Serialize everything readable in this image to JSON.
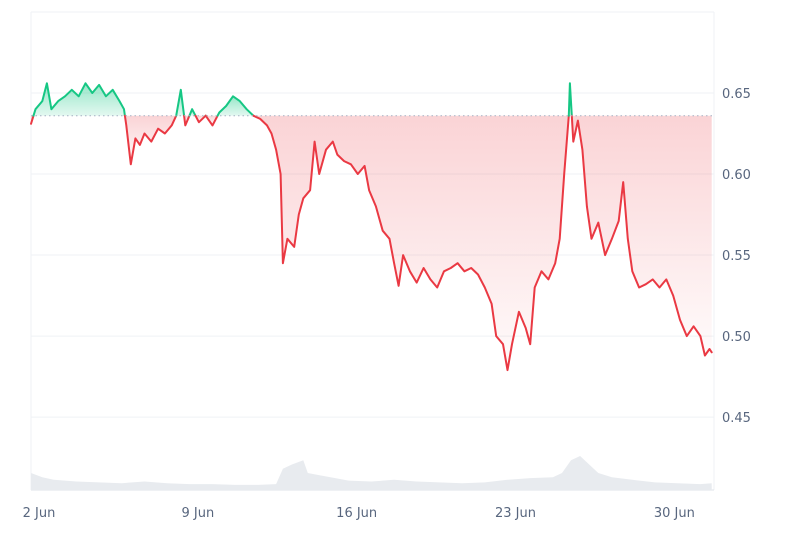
{
  "chart_data": {
    "type": "line",
    "baseline": 0.636,
    "ylim": [
      0.405,
      0.7
    ],
    "y_ticks": [
      {
        "value": 0.65,
        "label": "0.65"
      },
      {
        "value": 0.6,
        "label": "0.60"
      },
      {
        "value": 0.55,
        "label": "0.55"
      },
      {
        "value": 0.5,
        "label": "0.50"
      },
      {
        "value": 0.45,
        "label": "0.45"
      }
    ],
    "x_ticks": [
      {
        "day": 2,
        "label": "2 Jun"
      },
      {
        "day": 9,
        "label": "9 Jun"
      },
      {
        "day": 16,
        "label": "16 Jun"
      },
      {
        "day": 23,
        "label": "23 Jun"
      },
      {
        "day": 30,
        "label": "30 Jun"
      }
    ],
    "xlim": [
      2,
      32.1
    ],
    "colors": {
      "above": "#16c784",
      "below": "#ea3943",
      "volume": "#e8ebef",
      "grid": "#eff2f5",
      "baseline": "#a6b0c3"
    },
    "price": [
      [
        2.0,
        0.631
      ],
      [
        2.2,
        0.64
      ],
      [
        2.5,
        0.645
      ],
      [
        2.7,
        0.656
      ],
      [
        2.9,
        0.64
      ],
      [
        3.2,
        0.645
      ],
      [
        3.5,
        0.648
      ],
      [
        3.8,
        0.652
      ],
      [
        4.1,
        0.648
      ],
      [
        4.4,
        0.656
      ],
      [
        4.7,
        0.65
      ],
      [
        5.0,
        0.655
      ],
      [
        5.3,
        0.648
      ],
      [
        5.6,
        0.652
      ],
      [
        5.9,
        0.645
      ],
      [
        6.1,
        0.64
      ],
      [
        6.2,
        0.63
      ],
      [
        6.4,
        0.606
      ],
      [
        6.6,
        0.622
      ],
      [
        6.8,
        0.618
      ],
      [
        7.0,
        0.625
      ],
      [
        7.3,
        0.62
      ],
      [
        7.6,
        0.628
      ],
      [
        7.9,
        0.625
      ],
      [
        8.2,
        0.63
      ],
      [
        8.4,
        0.636
      ],
      [
        8.6,
        0.652
      ],
      [
        8.8,
        0.63
      ],
      [
        9.1,
        0.64
      ],
      [
        9.4,
        0.632
      ],
      [
        9.7,
        0.636
      ],
      [
        10.0,
        0.63
      ],
      [
        10.3,
        0.638
      ],
      [
        10.6,
        0.642
      ],
      [
        10.9,
        0.648
      ],
      [
        11.2,
        0.645
      ],
      [
        11.5,
        0.64
      ],
      [
        11.8,
        0.636
      ],
      [
        12.1,
        0.634
      ],
      [
        12.4,
        0.63
      ],
      [
        12.6,
        0.625
      ],
      [
        12.8,
        0.615
      ],
      [
        13.0,
        0.6
      ],
      [
        13.1,
        0.545
      ],
      [
        13.3,
        0.56
      ],
      [
        13.6,
        0.555
      ],
      [
        13.8,
        0.575
      ],
      [
        14.0,
        0.585
      ],
      [
        14.3,
        0.59
      ],
      [
        14.5,
        0.62
      ],
      [
        14.7,
        0.6
      ],
      [
        15.0,
        0.615
      ],
      [
        15.3,
        0.62
      ],
      [
        15.5,
        0.612
      ],
      [
        15.8,
        0.608
      ],
      [
        16.1,
        0.606
      ],
      [
        16.4,
        0.6
      ],
      [
        16.7,
        0.605
      ],
      [
        16.9,
        0.59
      ],
      [
        17.2,
        0.58
      ],
      [
        17.5,
        0.565
      ],
      [
        17.8,
        0.56
      ],
      [
        18.0,
        0.545
      ],
      [
        18.2,
        0.531
      ],
      [
        18.4,
        0.55
      ],
      [
        18.7,
        0.54
      ],
      [
        19.0,
        0.533
      ],
      [
        19.3,
        0.542
      ],
      [
        19.6,
        0.535
      ],
      [
        19.9,
        0.53
      ],
      [
        20.2,
        0.54
      ],
      [
        20.5,
        0.542
      ],
      [
        20.8,
        0.545
      ],
      [
        21.1,
        0.54
      ],
      [
        21.4,
        0.542
      ],
      [
        21.7,
        0.538
      ],
      [
        22.0,
        0.53
      ],
      [
        22.3,
        0.52
      ],
      [
        22.5,
        0.5
      ],
      [
        22.8,
        0.495
      ],
      [
        23.0,
        0.479
      ],
      [
        23.2,
        0.495
      ],
      [
        23.5,
        0.515
      ],
      [
        23.8,
        0.505
      ],
      [
        24.0,
        0.495
      ],
      [
        24.2,
        0.53
      ],
      [
        24.5,
        0.54
      ],
      [
        24.8,
        0.535
      ],
      [
        25.1,
        0.545
      ],
      [
        25.3,
        0.56
      ],
      [
        25.5,
        0.6
      ],
      [
        25.7,
        0.636
      ],
      [
        25.75,
        0.656
      ],
      [
        25.9,
        0.62
      ],
      [
        26.1,
        0.633
      ],
      [
        26.3,
        0.615
      ],
      [
        26.5,
        0.58
      ],
      [
        26.7,
        0.56
      ],
      [
        27.0,
        0.57
      ],
      [
        27.3,
        0.55
      ],
      [
        27.6,
        0.56
      ],
      [
        27.9,
        0.571
      ],
      [
        28.1,
        0.595
      ],
      [
        28.3,
        0.56
      ],
      [
        28.5,
        0.54
      ],
      [
        28.8,
        0.53
      ],
      [
        29.1,
        0.532
      ],
      [
        29.4,
        0.535
      ],
      [
        29.7,
        0.53
      ],
      [
        30.0,
        0.535
      ],
      [
        30.3,
        0.525
      ],
      [
        30.6,
        0.51
      ],
      [
        30.9,
        0.5
      ],
      [
        31.2,
        0.506
      ],
      [
        31.5,
        0.5
      ],
      [
        31.7,
        0.488
      ],
      [
        31.9,
        0.492
      ],
      [
        32.0,
        0.49
      ]
    ],
    "volume_ylim": [
      0,
      1
    ],
    "volume": [
      [
        2.0,
        0.2
      ],
      [
        2.5,
        0.15
      ],
      [
        3.0,
        0.12
      ],
      [
        4.0,
        0.1
      ],
      [
        5.0,
        0.09
      ],
      [
        6.0,
        0.08
      ],
      [
        7.0,
        0.1
      ],
      [
        8.0,
        0.08
      ],
      [
        9.0,
        0.07
      ],
      [
        10.0,
        0.07
      ],
      [
        11.0,
        0.06
      ],
      [
        12.0,
        0.06
      ],
      [
        12.8,
        0.07
      ],
      [
        13.1,
        0.25
      ],
      [
        13.5,
        0.3
      ],
      [
        14.0,
        0.35
      ],
      [
        14.2,
        0.2
      ],
      [
        14.6,
        0.18
      ],
      [
        15.2,
        0.15
      ],
      [
        16.0,
        0.11
      ],
      [
        17.0,
        0.1
      ],
      [
        18.0,
        0.12
      ],
      [
        19.0,
        0.1
      ],
      [
        20.0,
        0.09
      ],
      [
        21.0,
        0.08
      ],
      [
        22.0,
        0.09
      ],
      [
        23.0,
        0.12
      ],
      [
        24.0,
        0.14
      ],
      [
        25.0,
        0.15
      ],
      [
        25.4,
        0.2
      ],
      [
        25.8,
        0.35
      ],
      [
        26.2,
        0.4
      ],
      [
        26.6,
        0.3
      ],
      [
        27.0,
        0.2
      ],
      [
        27.6,
        0.15
      ],
      [
        28.5,
        0.12
      ],
      [
        29.5,
        0.09
      ],
      [
        30.5,
        0.08
      ],
      [
        31.5,
        0.07
      ],
      [
        32.0,
        0.08
      ]
    ]
  }
}
